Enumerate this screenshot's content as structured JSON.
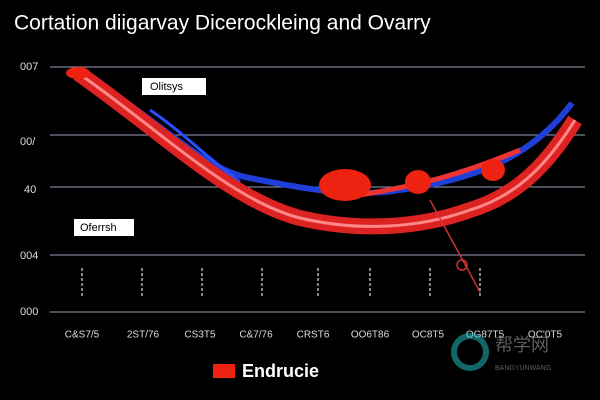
{
  "title": "Cortation diigarvay Dicerockleing and Ovarry",
  "y_axis_labels": [
    "007",
    "00/",
    "40",
    "004",
    "000"
  ],
  "x_axis_labels": [
    "C&S7/5",
    "2ST/76",
    "CS3T5",
    "C&7/76",
    "CRST6",
    "OO6T86",
    "OC8T5",
    "OG87T5",
    "OC'0T5"
  ],
  "annotations": [
    "Olitsys",
    "Oferrsh"
  ],
  "legend": {
    "label": "Endrucie"
  },
  "watermark": {
    "text": "帮学网",
    "subtext": "BANGYUNWANG"
  }
}
